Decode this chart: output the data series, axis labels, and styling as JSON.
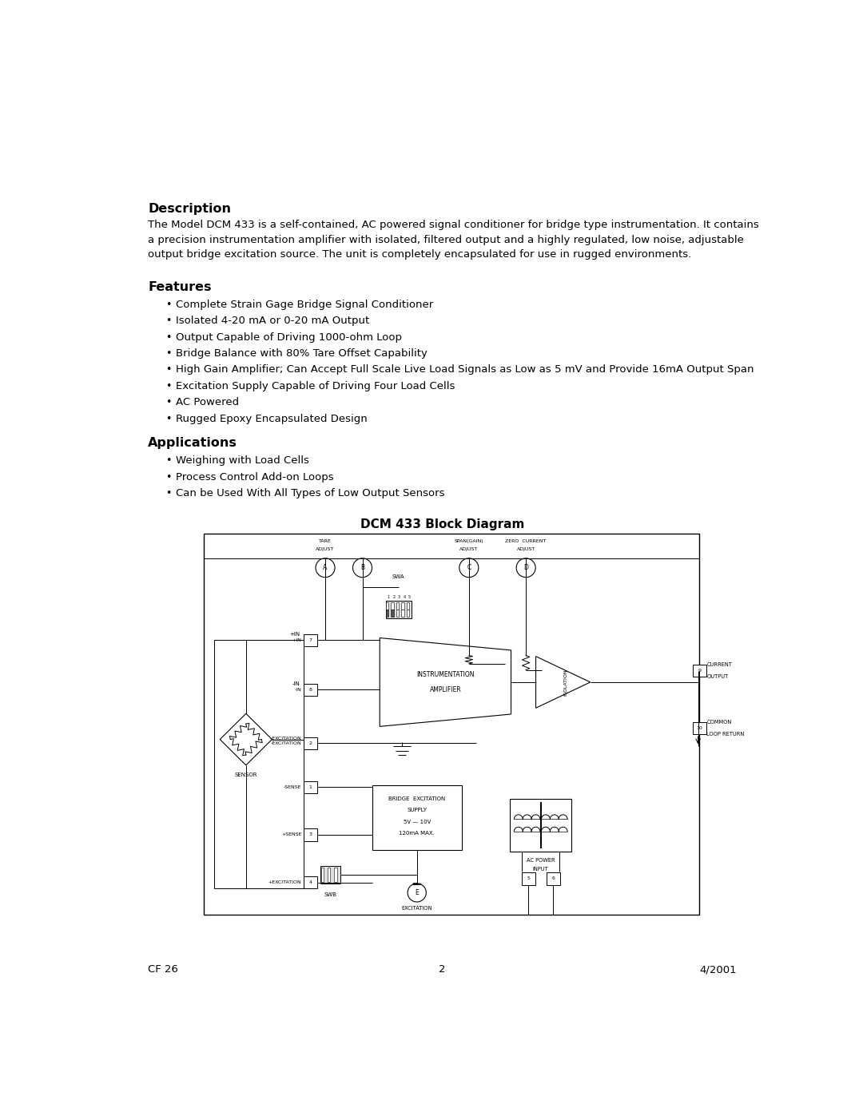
{
  "bg_color": "#ffffff",
  "text_color": "#000000",
  "page_width": 10.8,
  "page_height": 13.97,
  "description_heading": "Description",
  "description_text": "The Model DCM 433 is a self-contained, AC powered signal conditioner for bridge type instrumentation. It contains\na precision instrumentation amplifier with isolated, filtered output and a highly regulated, low noise, adjustable\noutput bridge excitation source. The unit is completely encapsulated for use in rugged environments.",
  "features_heading": "Features",
  "features_items": [
    "Complete Strain Gage Bridge Signal Conditioner",
    "Isolated 4-20 mA or 0-20 mA Output",
    "Output Capable of Driving 1000-ohm Loop",
    "Bridge Balance with 80% Tare Offset Capability",
    "High Gain Amplifier; Can Accept Full Scale Live Load Signals as Low as 5 mV and Provide 16mA Output Span",
    "Excitation Supply Capable of Driving Four Load Cells",
    "AC Powered",
    "Rugged Epoxy Encapsulated Design"
  ],
  "applications_heading": "Applications",
  "applications_items": [
    "Weighing with Load Cells",
    "Process Control Add-on Loops",
    "Can be Used With All Types of Low Output Sensors"
  ],
  "diagram_title": "DCM 433 Block Diagram",
  "footer_left": "CF 26",
  "footer_center": "2",
  "footer_right": "4/2001"
}
